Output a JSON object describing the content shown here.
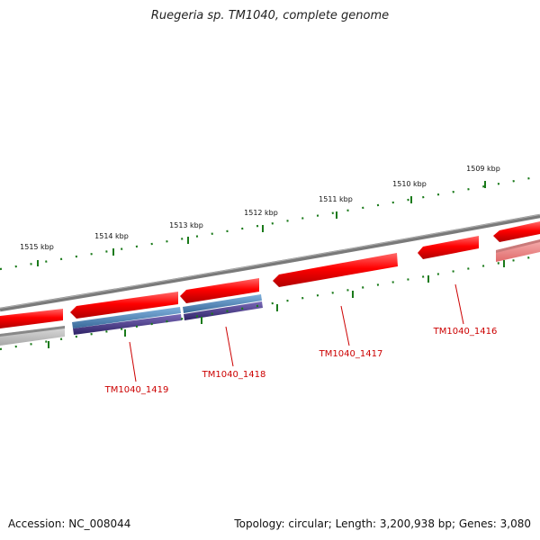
{
  "title": "Ruegeria sp. TM1040, complete genome",
  "accession": "Accession: NC_008044",
  "summary": "Topology: circular; Length: 3,200,938 bp; Genes: 3,080",
  "scale_labels": [
    "1509 kbp",
    "1510 kbp",
    "1511 kbp",
    "1512 kbp",
    "1513 kbp",
    "1514 kbp",
    "1515 kbp"
  ],
  "gene_labels": [
    "TM1040_1416",
    "TM1040_1417",
    "TM1040_1418",
    "TM1040_1419"
  ],
  "colors": {
    "backbone": "#7a7a7a",
    "gene_forward": "#ff0000",
    "gene_reverse_pale": "#f08080",
    "feature_blue": "#4a7fb0",
    "feature_purple": "#4a3a8a",
    "tick": "#1a7a1a",
    "label_red": "#cc0000"
  }
}
